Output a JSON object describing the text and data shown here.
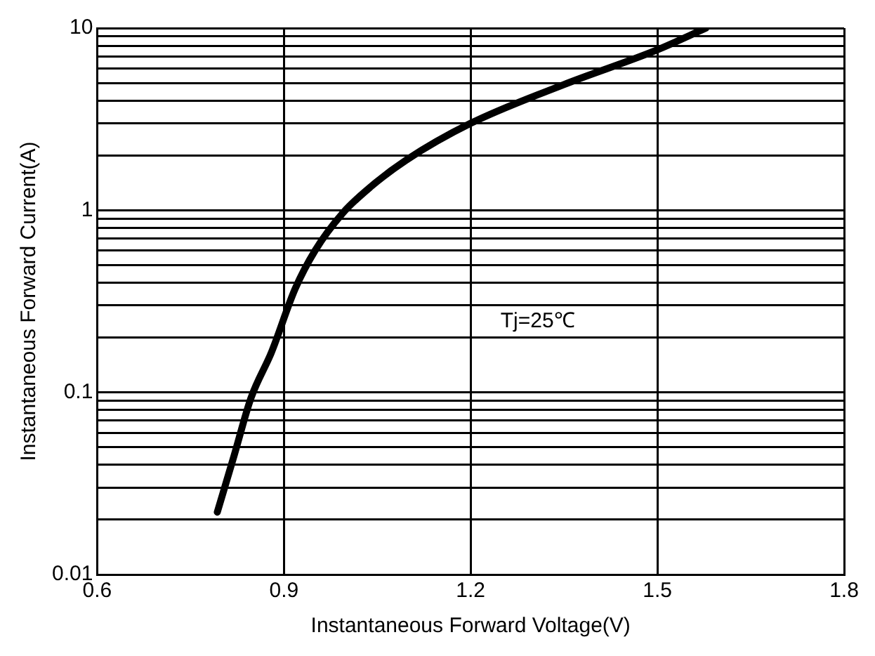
{
  "chart_data": {
    "type": "line",
    "xlabel": "Instantaneous Forward Voltage(V)",
    "ylabel": "Instantaneous Forward Current(A)",
    "x": [
      0.793,
      0.82,
      0.847,
      0.88,
      0.918,
      0.95,
      0.994,
      1.04,
      1.096,
      1.2,
      1.35,
      1.5,
      1.578
    ],
    "series": [
      {
        "color": "#000000",
        "values": [
          0.022,
          0.045,
          0.093,
          0.166,
          0.37,
          0.6,
          0.96,
          1.35,
          1.88,
          3.0,
          4.9,
          7.6,
          10
        ]
      }
    ],
    "xlim": [
      0.6,
      1.8
    ],
    "xticks": [
      0.6,
      0.9,
      1.2,
      1.5,
      1.8
    ],
    "ylim": [
      0.01,
      10
    ],
    "yticks": [
      0.01,
      {
        "value": 0.02,
        "label": null
      },
      {
        "value": 0.03,
        "label": null
      },
      {
        "value": 0.04,
        "label": null
      },
      {
        "value": 0.05,
        "label": null
      },
      {
        "value": 0.06,
        "label": null
      },
      {
        "value": 0.07,
        "label": null
      },
      {
        "value": 0.08,
        "label": null
      },
      {
        "value": 0.09,
        "label": null
      },
      0.1,
      {
        "value": 0.2,
        "label": null
      },
      {
        "value": 0.3,
        "label": null
      },
      {
        "value": 0.4,
        "label": null
      },
      {
        "value": 0.5,
        "label": null
      },
      {
        "value": 0.6,
        "label": null
      },
      {
        "value": 0.7,
        "label": null
      },
      {
        "value": 0.8,
        "label": null
      },
      {
        "value": 0.9,
        "label": null
      },
      1,
      {
        "value": 2,
        "label": null
      },
      {
        "value": 3,
        "label": null
      },
      {
        "value": 4,
        "label": null
      },
      {
        "value": 5,
        "label": null
      },
      {
        "value": 6,
        "label": null
      },
      {
        "value": 7,
        "label": null
      },
      {
        "value": 8,
        "label": null
      },
      {
        "value": 9,
        "label": null
      },
      10
    ],
    "log": "y",
    "grid": true,
    "marker": "none",
    "line_style": "solid",
    "annotations": [
      "Tj=25℃"
    ]
  }
}
